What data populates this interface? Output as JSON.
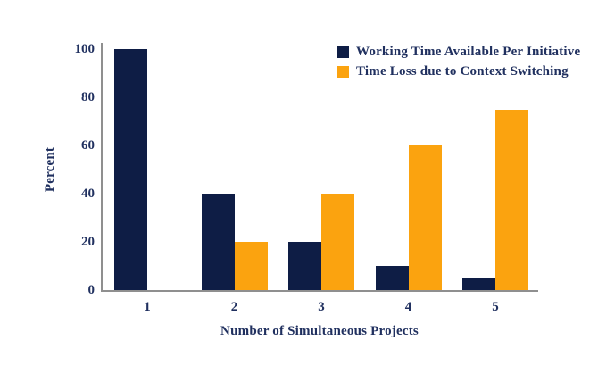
{
  "chart_data": {
    "type": "bar",
    "title": "",
    "xlabel": "Number of Simultaneous Projects",
    "ylabel": "Percent",
    "categories": [
      "1",
      "2",
      "3",
      "4",
      "5"
    ],
    "series": [
      {
        "name": "Working Time Available Per Initiative",
        "color": "#0e1d45",
        "values": [
          100,
          40,
          20,
          10,
          5
        ]
      },
      {
        "name": "Time Loss due to Context Switching",
        "color": "#fba30f",
        "values": [
          0,
          20,
          40,
          60,
          75
        ]
      }
    ],
    "ylim": [
      0,
      100
    ],
    "yticks": [
      0,
      20,
      40,
      60,
      80,
      100
    ],
    "legend_position": "top-right",
    "grid": false
  },
  "colors": {
    "navy": "#0e1d45",
    "orange": "#fba30f",
    "text": "#20305f",
    "axis_line": "#8f8f8f",
    "background": "#ffffff"
  }
}
